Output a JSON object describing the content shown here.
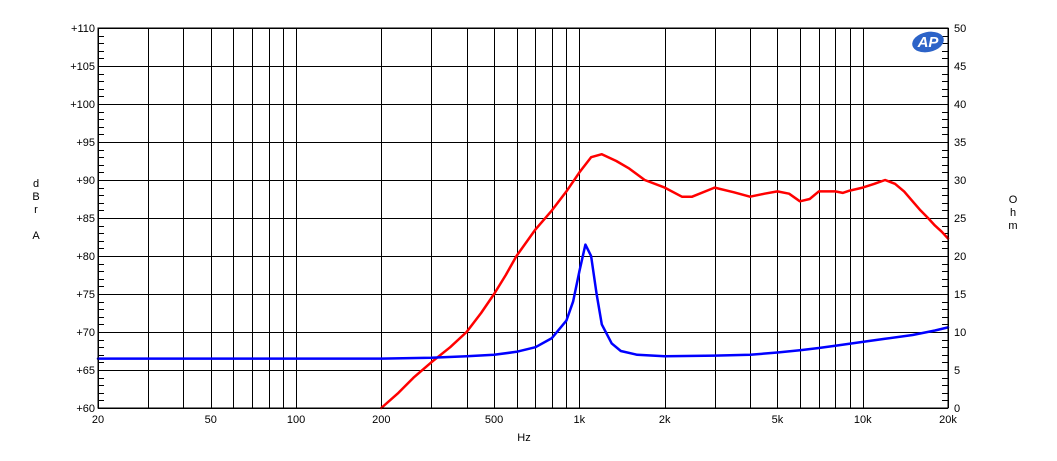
{
  "chart_data": {
    "type": "line",
    "title": "",
    "x_axis": {
      "label": "Hz",
      "scale": "log",
      "range": [
        20,
        20000
      ],
      "ticks": [
        {
          "value": 20,
          "label": "20"
        },
        {
          "value": 50,
          "label": "50"
        },
        {
          "value": 100,
          "label": "100"
        },
        {
          "value": 200,
          "label": "200"
        },
        {
          "value": 500,
          "label": "500"
        },
        {
          "value": 1000,
          "label": "1k"
        },
        {
          "value": 2000,
          "label": "2k"
        },
        {
          "value": 5000,
          "label": "5k"
        },
        {
          "value": 10000,
          "label": "10k"
        },
        {
          "value": 20000,
          "label": "20k"
        }
      ]
    },
    "y_left": {
      "label_chars": [
        "d",
        "B",
        "r",
        "",
        "A"
      ],
      "range": [
        60,
        110
      ],
      "ticks": [
        {
          "value": 110,
          "label": "+110"
        },
        {
          "value": 105,
          "label": "+105"
        },
        {
          "value": 100,
          "label": "+100"
        },
        {
          "value": 95,
          "label": "+95"
        },
        {
          "value": 90,
          "label": "+90"
        },
        {
          "value": 85,
          "label": "+85"
        },
        {
          "value": 80,
          "label": "+80"
        },
        {
          "value": 75,
          "label": "+75"
        },
        {
          "value": 70,
          "label": "+70"
        },
        {
          "value": 65,
          "label": "+65"
        },
        {
          "value": 60,
          "label": "+60"
        }
      ]
    },
    "y_right": {
      "label_chars": [
        "O",
        "h",
        "m"
      ],
      "range": [
        0,
        50
      ],
      "ticks": [
        {
          "value": 50,
          "label": "50"
        },
        {
          "value": 45,
          "label": "45"
        },
        {
          "value": 40,
          "label": "40"
        },
        {
          "value": 35,
          "label": "35"
        },
        {
          "value": 30,
          "label": "30"
        },
        {
          "value": 25,
          "label": "25"
        },
        {
          "value": 20,
          "label": "20"
        },
        {
          "value": 15,
          "label": "15"
        },
        {
          "value": 10,
          "label": "10"
        },
        {
          "value": 5,
          "label": "5"
        },
        {
          "value": 0,
          "label": "0"
        }
      ]
    },
    "grid": true,
    "series": [
      {
        "axis": "left",
        "color": "#ff0000",
        "points": [
          [
            200,
            60
          ],
          [
            230,
            62
          ],
          [
            260,
            64
          ],
          [
            300,
            66
          ],
          [
            350,
            68
          ],
          [
            400,
            70
          ],
          [
            450,
            72.5
          ],
          [
            500,
            75
          ],
          [
            550,
            77.5
          ],
          [
            600,
            80
          ],
          [
            700,
            83.5
          ],
          [
            800,
            86
          ],
          [
            900,
            88.5
          ],
          [
            1000,
            91
          ],
          [
            1100,
            93
          ],
          [
            1200,
            93.4
          ],
          [
            1350,
            92.5
          ],
          [
            1500,
            91.5
          ],
          [
            1700,
            90
          ],
          [
            2000,
            89
          ],
          [
            2300,
            87.8
          ],
          [
            2500,
            87.8
          ],
          [
            3000,
            89
          ],
          [
            3500,
            88.4
          ],
          [
            4000,
            87.8
          ],
          [
            4500,
            88.2
          ],
          [
            5000,
            88.5
          ],
          [
            5500,
            88.2
          ],
          [
            6000,
            87.2
          ],
          [
            6500,
            87.5
          ],
          [
            7000,
            88.5
          ],
          [
            8000,
            88.5
          ],
          [
            8500,
            88.3
          ],
          [
            9000,
            88.6
          ],
          [
            10000,
            89
          ],
          [
            11000,
            89.5
          ],
          [
            12000,
            90
          ],
          [
            13000,
            89.5
          ],
          [
            14000,
            88.5
          ],
          [
            15000,
            87.2
          ],
          [
            16000,
            86
          ],
          [
            17000,
            85
          ],
          [
            18000,
            84
          ],
          [
            19000,
            83.2
          ],
          [
            20000,
            82.3
          ]
        ]
      },
      {
        "axis": "right",
        "color": "#0000ff",
        "points": [
          [
            20,
            6.5
          ],
          [
            50,
            6.5
          ],
          [
            100,
            6.5
          ],
          [
            200,
            6.5
          ],
          [
            300,
            6.6
          ],
          [
            400,
            6.8
          ],
          [
            500,
            7.0
          ],
          [
            600,
            7.4
          ],
          [
            700,
            8.0
          ],
          [
            800,
            9.2
          ],
          [
            900,
            11.5
          ],
          [
            950,
            14
          ],
          [
            1000,
            18
          ],
          [
            1050,
            21.5
          ],
          [
            1100,
            20
          ],
          [
            1150,
            15
          ],
          [
            1200,
            11
          ],
          [
            1300,
            8.5
          ],
          [
            1400,
            7.5
          ],
          [
            1600,
            7.0
          ],
          [
            2000,
            6.8
          ],
          [
            3000,
            6.9
          ],
          [
            4000,
            7.0
          ],
          [
            5000,
            7.3
          ],
          [
            6000,
            7.6
          ],
          [
            7000,
            7.9
          ],
          [
            8000,
            8.2
          ],
          [
            10000,
            8.7
          ],
          [
            12000,
            9.1
          ],
          [
            15000,
            9.6
          ],
          [
            18000,
            10.2
          ],
          [
            20000,
            10.6
          ]
        ]
      }
    ]
  },
  "logo": {
    "text": "AP",
    "color": "#2c63c8"
  }
}
